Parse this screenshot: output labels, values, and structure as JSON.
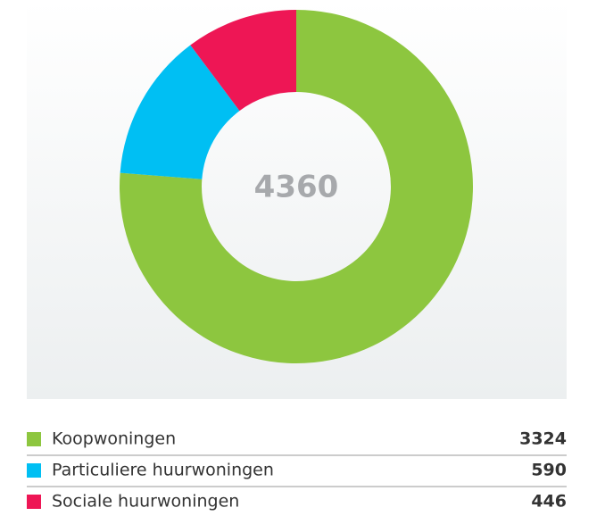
{
  "chart_data": {
    "type": "donut",
    "total": 4360,
    "categories": [
      "Koopwoningen",
      "Particuliere huurwoningen",
      "Sociale huurwoningen"
    ],
    "values": [
      3324,
      590,
      446
    ],
    "colors": [
      "#8dc63f",
      "#00bff3",
      "#ee1655"
    ]
  }
}
